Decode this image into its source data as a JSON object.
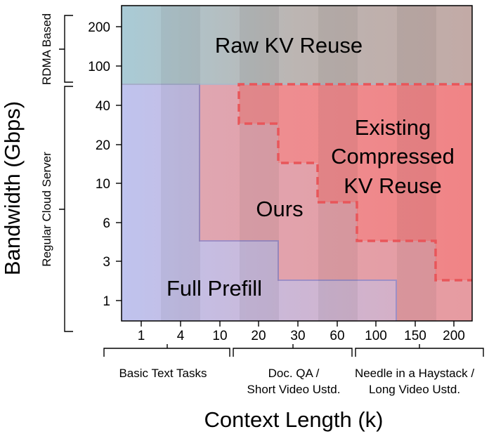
{
  "chart_data": {
    "type": "region-diagram",
    "xlabel": "Context Length (k)",
    "ylabel": "Bandwidth (Gbps)",
    "x_ticks": [
      "1",
      "4",
      "10",
      "20",
      "30",
      "60",
      "100",
      "150",
      "200"
    ],
    "y_ticks": [
      "200",
      "100",
      "40",
      "20",
      "10",
      "6",
      "3",
      "1"
    ],
    "x_groups": [
      {
        "label": "Basic Text Tasks",
        "from": "1",
        "to": "10"
      },
      {
        "label": "Doc. QA /\nShort Video Ustd.",
        "from": "20",
        "to": "60"
      },
      {
        "label": "Needle in a Haystack /\nLong Video Ustd.",
        "from": "100",
        "to": "200"
      }
    ],
    "y_groups": [
      {
        "label": "RDMA Based",
        "from": "100",
        "to": "200"
      },
      {
        "label": "Regular Cloud Server",
        "from": "1",
        "to": "40"
      }
    ],
    "regions": [
      {
        "label": "Raw KV Reuse",
        "color": "#c0a9a4",
        "bandwidth": [
          "100",
          "200"
        ],
        "context": [
          "1",
          "200"
        ]
      },
      {
        "label": "Full Prefill",
        "color": "#b9b7e6",
        "bandwidth": [
          "1",
          "40"
        ],
        "context_boundary": {
          "40": "4",
          "20": "4",
          "10": "4",
          "6": "4",
          "3": "30",
          "1": "100"
        }
      },
      {
        "label": "Ours",
        "color": "#e3a3a8",
        "context_boundary": {
          "40": "10",
          "20": "10",
          "10": "10",
          "6": "10",
          "3": "30",
          "1": "100"
        }
      },
      {
        "label": "Existing\nCompressed\nKV Reuse",
        "color": "#ef8f90",
        "style": "dashed",
        "boundary_color": "#e8565a",
        "context_boundary": {
          "40": "20",
          "20": "30",
          "10": "60",
          "6": "100",
          "3": "150",
          "1": "200"
        }
      }
    ]
  }
}
